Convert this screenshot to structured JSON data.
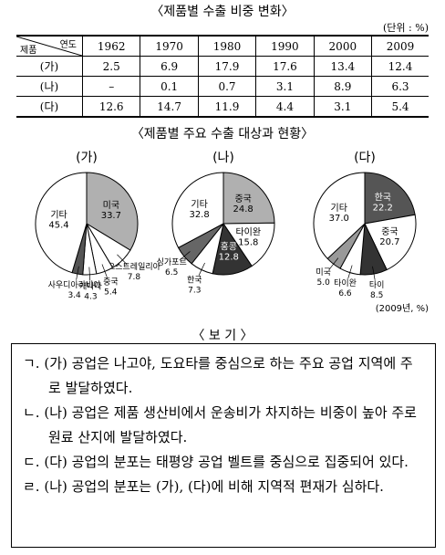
{
  "table": {
    "title": "〈제품별 수출 비중 변화〉",
    "unit": "(단위 : %)",
    "corner_top": "연도",
    "corner_bottom": "제품",
    "columns": [
      "1962",
      "1970",
      "1980",
      "1990",
      "2000",
      "2009"
    ],
    "rows": [
      {
        "label": "(가)",
        "values": [
          "2.5",
          "6.9",
          "17.9",
          "17.6",
          "13.4",
          "12.4"
        ]
      },
      {
        "label": "(나)",
        "values": [
          "–",
          "0.1",
          "0.7",
          "3.1",
          "8.9",
          "6.3"
        ]
      },
      {
        "label": "(다)",
        "values": [
          "12.6",
          "14.7",
          "11.9",
          "4.4",
          "3.1",
          "5.4"
        ]
      }
    ]
  },
  "pies": {
    "title": "〈제품별 주요 수출 대상과 현황〉",
    "note": "(2009년, %)"
  },
  "chart_data": [
    {
      "type": "pie",
      "title": "(가)",
      "categories": [
        "미국",
        "오스트레일리아",
        "중국",
        "캐나다",
        "사우디아라비아",
        "기타"
      ],
      "values": [
        33.7,
        7.8,
        5.4,
        4.3,
        3.4,
        45.4
      ],
      "colors": [
        "#b0b0b0",
        "#ffffff",
        "#ffffff",
        "#ffffff",
        "#555555",
        "#ffffff"
      ]
    },
    {
      "type": "pie",
      "title": "(나)",
      "categories": [
        "중국",
        "타이완",
        "홍콩",
        "한국",
        "싱가포르",
        "기타"
      ],
      "values": [
        24.8,
        15.8,
        12.8,
        7.3,
        6.5,
        32.8
      ],
      "colors": [
        "#b0b0b0",
        "#ffffff",
        "#333333",
        "#ffffff",
        "#666666",
        "#ffffff"
      ]
    },
    {
      "type": "pie",
      "title": "(다)",
      "categories": [
        "한국",
        "중국",
        "타이",
        "타이완",
        "미국",
        "기타"
      ],
      "values": [
        22.2,
        20.7,
        8.5,
        6.6,
        5,
        37
      ],
      "value_labels": [
        "22.2",
        "20.7",
        "8.5",
        "6.6",
        "5.0",
        "37.0"
      ],
      "colors": [
        "#555555",
        "#ffffff",
        "#333333",
        "#ffffff",
        "#999999",
        "#ffffff"
      ]
    }
  ],
  "box": {
    "title": "〈 보 기 〉",
    "items": [
      "ㄱ. (가) 공업은 나고야, 도요타를 중심으로 하는 주요 공업 지역에 주로 발달하였다.",
      "ㄴ. (나) 공업은 제품 생산비에서 운송비가 차지하는 비중이 높아 주로 원료 산지에 발달하였다.",
      "ㄷ. (다) 공업의 분포는 태평양 공업 벨트를 중심으로 집중되어 있다.",
      "ㄹ. (나) 공업의 분포는 (가), (다)에 비해 지역적 편재가 심하다."
    ]
  }
}
